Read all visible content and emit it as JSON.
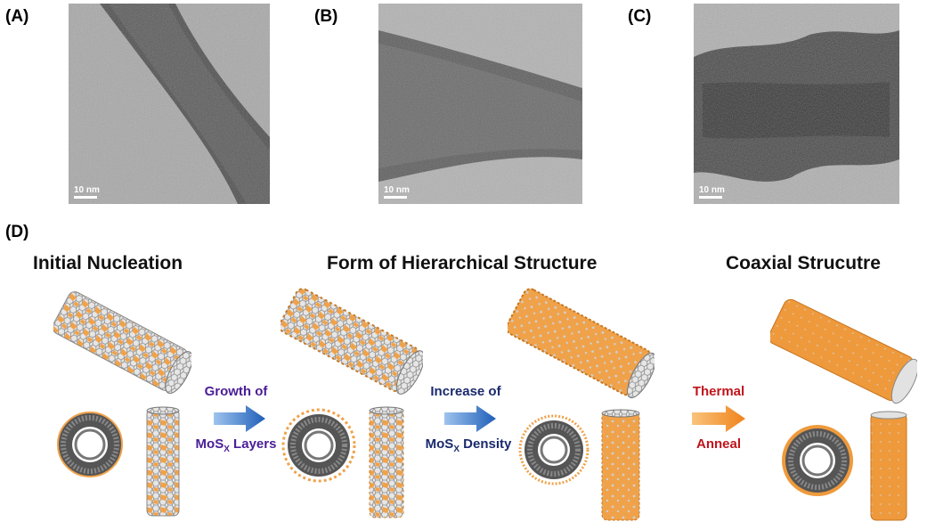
{
  "panels": {
    "a_label": "(A)",
    "b_label": "(B)",
    "c_label": "(C)",
    "d_label": "(D)",
    "scale_a": "10 nm",
    "scale_b": "10 nm",
    "scale_c": "10 nm"
  },
  "stages": {
    "stage1": "Initial Nucleation",
    "stage2": "Form of Hierarchical Structure",
    "stage3": "Coaxial Strucutre"
  },
  "arrows": {
    "a1_top": "Growth of",
    "a1_bottom_main": "MoS",
    "a1_bottom_sub": "X",
    "a1_bottom_rest": " Layers",
    "a2_top": "Increase of",
    "a2_bottom_main": "MoS",
    "a2_bottom_sub": "X",
    "a2_bottom_rest": " Density",
    "a3_top": "Thermal",
    "a3_bottom": "Anneal"
  },
  "colors": {
    "mos_orange": "#f0a24a",
    "cnt_gray": "#bfbfbf",
    "arrow_blue": "#2f6fc4",
    "arrow_orange": "#f08a1e"
  }
}
